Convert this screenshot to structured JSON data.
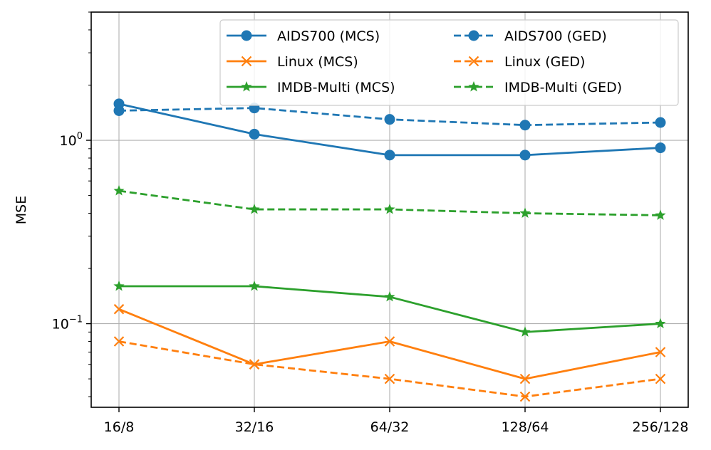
{
  "chart_data": {
    "type": "line",
    "title": "",
    "xlabel": "",
    "ylabel": "MSE",
    "yscale": "log",
    "ylim": [
      0.035,
      5.0
    ],
    "grid": true,
    "legend_location": "top-right",
    "legend_columns": 2,
    "categories": [
      "16/8",
      "32/16",
      "64/32",
      "128/64",
      "256/128"
    ],
    "y_ticks": [
      {
        "value": 1.0,
        "base": "10",
        "exponent": "0"
      },
      {
        "value": 0.1,
        "base": "10",
        "exponent": "−1"
      }
    ],
    "series": [
      {
        "name": "AIDS700 (MCS)",
        "color": "#1f77b4",
        "style": "solid",
        "marker": "circle",
        "values": [
          1.58,
          1.08,
          0.83,
          0.83,
          0.91
        ]
      },
      {
        "name": "AIDS700 (GED)",
        "color": "#1f77b4",
        "style": "dashed",
        "marker": "circle",
        "values": [
          1.45,
          1.5,
          1.3,
          1.21,
          1.25
        ]
      },
      {
        "name": "Linux (MCS)",
        "color": "#ff7f0e",
        "style": "solid",
        "marker": "x",
        "values": [
          0.12,
          0.06,
          0.08,
          0.05,
          0.07
        ]
      },
      {
        "name": "Linux (GED)",
        "color": "#ff7f0e",
        "style": "dashed",
        "marker": "x",
        "values": [
          0.08,
          0.06,
          0.05,
          0.04,
          0.05
        ]
      },
      {
        "name": "IMDB-Multi (MCS)",
        "color": "#2ca02c",
        "style": "solid",
        "marker": "star",
        "values": [
          0.16,
          0.16,
          0.14,
          0.09,
          0.1
        ]
      },
      {
        "name": "IMDB-Multi (GED)",
        "color": "#2ca02c",
        "style": "dashed",
        "marker": "star",
        "values": [
          0.53,
          0.42,
          0.42,
          0.4,
          0.39
        ]
      }
    ]
  }
}
